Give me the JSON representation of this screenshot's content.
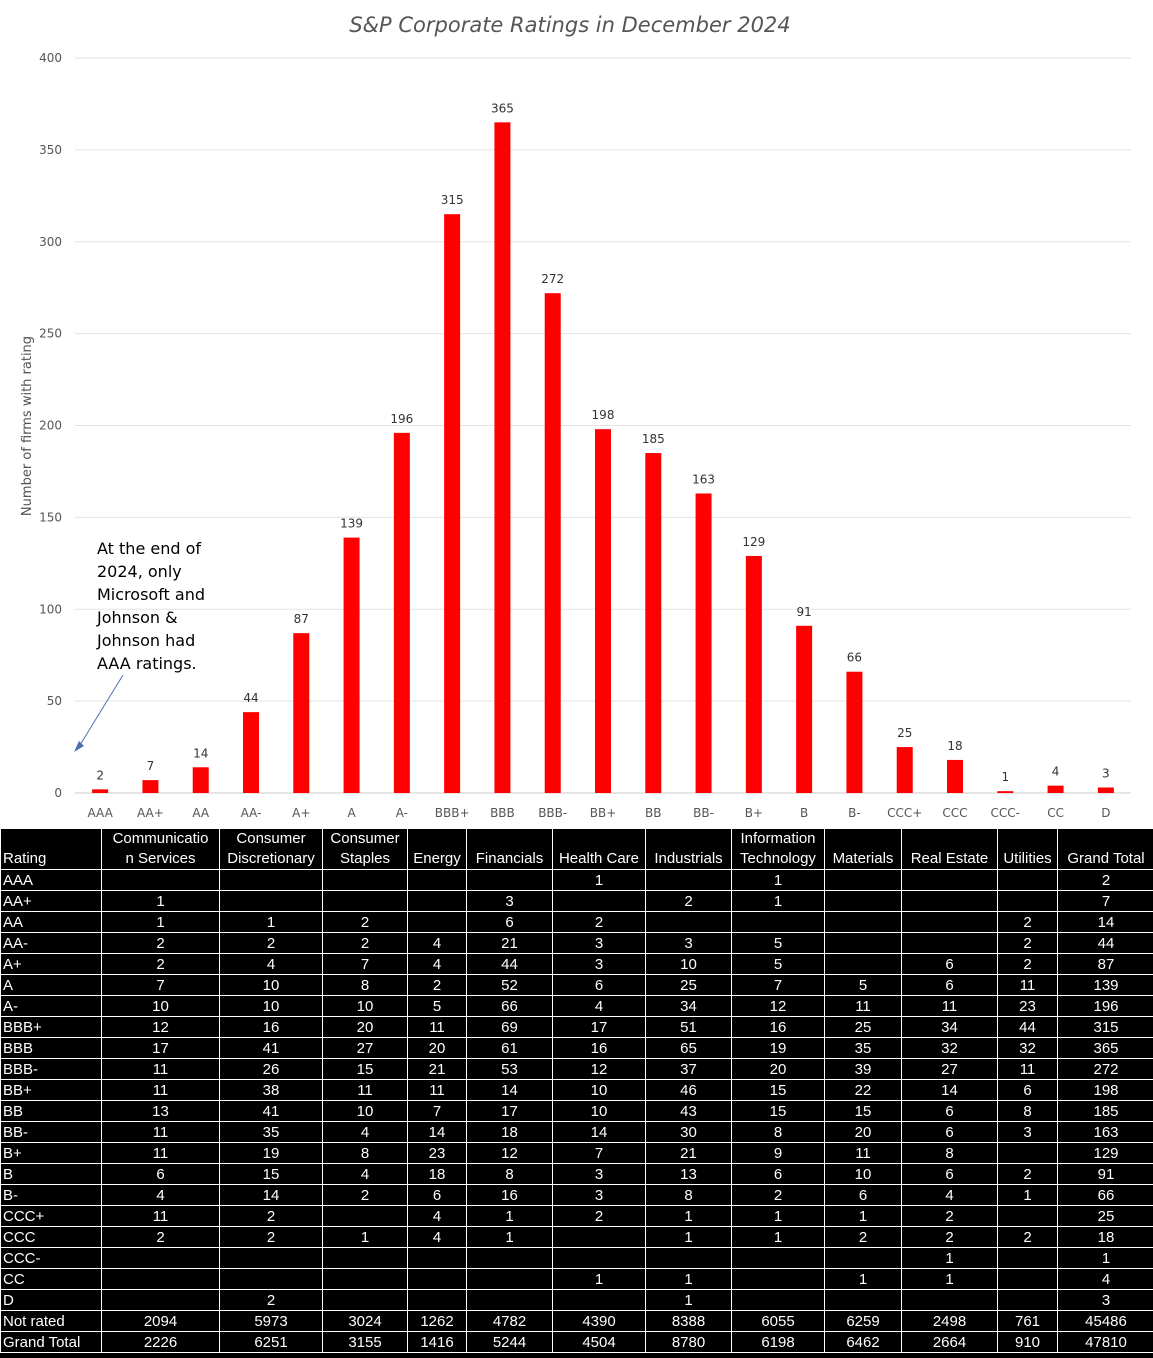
{
  "chart_data": {
    "type": "bar",
    "title": "S&P Corporate Ratings in December 2024",
    "xlabel": "",
    "ylabel": "Number of firms with rating",
    "ylim": [
      0,
      400
    ],
    "yticks": [
      0,
      50,
      100,
      150,
      200,
      250,
      300,
      350,
      400
    ],
    "grid": true,
    "bar_color": "#ff0000",
    "categories": [
      "AAA",
      "AA+",
      "AA",
      "AA-",
      "A+",
      "A",
      "A-",
      "BBB+",
      "BBB",
      "BBB-",
      "BB+",
      "BB",
      "BB-",
      "B+",
      "B",
      "B-",
      "CCC+",
      "CCC",
      "CCC-",
      "CC",
      "D"
    ],
    "values": [
      2,
      7,
      14,
      44,
      87,
      139,
      196,
      315,
      365,
      272,
      198,
      185,
      163,
      129,
      91,
      66,
      25,
      18,
      1,
      4,
      3
    ],
    "annotation": "At the end of 2024, only Microsoft and Johnson & Johnson had AAA ratings."
  },
  "table": {
    "headers": [
      "Rating",
      "Communication Services",
      "Consumer Discretionary",
      "Consumer Staples",
      "Energy",
      "Financials",
      "Health Care",
      "Industrials",
      "Information Technology",
      "Materials",
      "Real Estate",
      "Utilities",
      "Grand Total"
    ],
    "header_lines": [
      [
        "Rating"
      ],
      [
        "Communicatio",
        "n Services"
      ],
      [
        "Consumer",
        "Discretionary"
      ],
      [
        "Consumer",
        "Staples"
      ],
      [
        "Energy"
      ],
      [
        "Financials"
      ],
      [
        "Health Care"
      ],
      [
        "Industrials"
      ],
      [
        "Information",
        "Technology"
      ],
      [
        "Materials"
      ],
      [
        "Real Estate"
      ],
      [
        "Utilities"
      ],
      [
        "Grand Total"
      ]
    ],
    "rows": [
      [
        "AAA",
        "",
        "",
        "",
        "",
        "",
        "1",
        "",
        "1",
        "",
        "",
        "",
        "2"
      ],
      [
        "AA+",
        "1",
        "",
        "",
        "",
        "3",
        "",
        "2",
        "1",
        "",
        "",
        "",
        "7"
      ],
      [
        "AA",
        "1",
        "1",
        "2",
        "",
        "6",
        "2",
        "",
        "",
        "",
        "",
        "2",
        "14"
      ],
      [
        "AA-",
        "2",
        "2",
        "2",
        "4",
        "21",
        "3",
        "3",
        "5",
        "",
        "",
        "2",
        "44"
      ],
      [
        "A+",
        "2",
        "4",
        "7",
        "4",
        "44",
        "3",
        "10",
        "5",
        "",
        "6",
        "2",
        "87"
      ],
      [
        "A",
        "7",
        "10",
        "8",
        "2",
        "52",
        "6",
        "25",
        "7",
        "5",
        "6",
        "11",
        "139"
      ],
      [
        "A-",
        "10",
        "10",
        "10",
        "5",
        "66",
        "4",
        "34",
        "12",
        "11",
        "11",
        "23",
        "196"
      ],
      [
        "BBB+",
        "12",
        "16",
        "20",
        "11",
        "69",
        "17",
        "51",
        "16",
        "25",
        "34",
        "44",
        "315"
      ],
      [
        "BBB",
        "17",
        "41",
        "27",
        "20",
        "61",
        "16",
        "65",
        "19",
        "35",
        "32",
        "32",
        "365"
      ],
      [
        "BBB-",
        "11",
        "26",
        "15",
        "21",
        "53",
        "12",
        "37",
        "20",
        "39",
        "27",
        "11",
        "272"
      ],
      [
        "BB+",
        "11",
        "38",
        "11",
        "11",
        "14",
        "10",
        "46",
        "15",
        "22",
        "14",
        "6",
        "198"
      ],
      [
        "BB",
        "13",
        "41",
        "10",
        "7",
        "17",
        "10",
        "43",
        "15",
        "15",
        "6",
        "8",
        "185"
      ],
      [
        "BB-",
        "11",
        "35",
        "4",
        "14",
        "18",
        "14",
        "30",
        "8",
        "20",
        "6",
        "3",
        "163"
      ],
      [
        "B+",
        "11",
        "19",
        "8",
        "23",
        "12",
        "7",
        "21",
        "9",
        "11",
        "8",
        "",
        "129"
      ],
      [
        "B",
        "6",
        "15",
        "4",
        "18",
        "8",
        "3",
        "13",
        "6",
        "10",
        "6",
        "2",
        "91"
      ],
      [
        "B-",
        "4",
        "14",
        "2",
        "6",
        "16",
        "3",
        "8",
        "2",
        "6",
        "4",
        "1",
        "66"
      ],
      [
        "CCC+",
        "11",
        "2",
        "",
        "4",
        "1",
        "2",
        "1",
        "1",
        "1",
        "2",
        "",
        "25"
      ],
      [
        "CCC",
        "2",
        "2",
        "1",
        "4",
        "1",
        "",
        "1",
        "1",
        "2",
        "2",
        "2",
        "18"
      ],
      [
        "CCC-",
        "",
        "",
        "",
        "",
        "",
        "",
        "",
        "",
        "",
        "1",
        "",
        "1"
      ],
      [
        "CC",
        "",
        "",
        "",
        "",
        "",
        "1",
        "1",
        "",
        "1",
        "1",
        "",
        "4"
      ],
      [
        "D",
        "",
        "2",
        "",
        "",
        "",
        "",
        "1",
        "",
        "",
        "",
        "",
        "3"
      ],
      [
        "Not rated",
        "2094",
        "5973",
        "3024",
        "1262",
        "4782",
        "4390",
        "8388",
        "6055",
        "6259",
        "2498",
        "761",
        "45486"
      ],
      [
        "Grand Total",
        "2226",
        "6251",
        "3155",
        "1416",
        "5244",
        "4504",
        "8780",
        "6198",
        "6462",
        "2664",
        "910",
        "47810"
      ]
    ]
  }
}
